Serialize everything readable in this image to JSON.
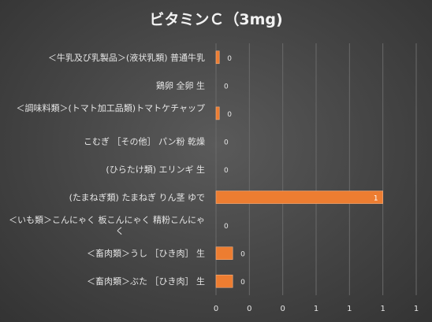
{
  "chart_data": {
    "type": "bar",
    "orientation": "horizontal",
    "title": "ビタミンＣ（3mg)",
    "categories": [
      "＜牛乳及び乳製品＞(液状乳類) 普通牛乳",
      "鶏卵 全卵 生",
      "＜調味料類＞(トマト加工品類)トマトケチャップ",
      "こむぎ ［その他］ パン粉 乾燥",
      "(ひらたけ類) エリンギ 生",
      "(たまねぎ類) たまねぎ りん茎 ゆで",
      "＜いも類＞こんにゃく 板こんにゃく 精粉こんにゃく",
      "＜畜肉類＞うし ［ひき肉］ 生",
      "＜畜肉類＞ぶた ［ひき肉］ 生"
    ],
    "values": [
      0.02,
      0,
      0.02,
      0,
      0,
      1,
      0,
      0.1,
      0.1
    ],
    "data_labels": [
      "0",
      "0",
      "0",
      "0",
      "0",
      "1",
      "0",
      "0",
      "0"
    ],
    "xlim": [
      0,
      1.2
    ],
    "x_ticks": [
      0,
      0.2,
      0.4,
      0.6,
      0.8,
      1.0,
      1.2
    ],
    "x_tick_labels": [
      "0",
      "0",
      "0",
      "1",
      "1",
      "1",
      "1"
    ],
    "grid": "vertical",
    "legend": "none",
    "bar_color": "#ED7D31"
  }
}
